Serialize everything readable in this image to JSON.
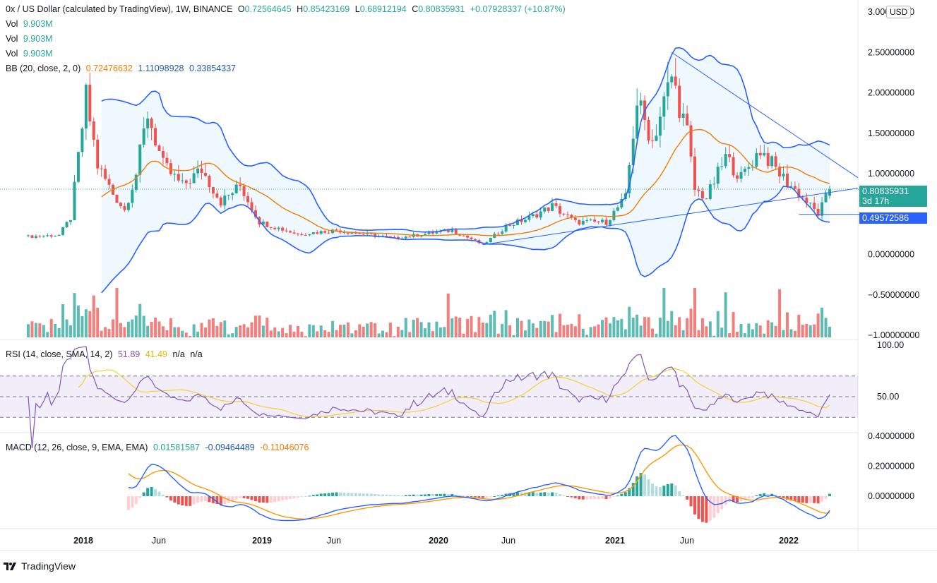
{
  "header": {
    "symbol": "0x / US Dollar (calculated by TradingView), 1W, BINANCE",
    "o_label": "O",
    "o": "0.72564645",
    "h_label": "H",
    "h": "0.85423169",
    "l_label": "L",
    "l": "0.68912194",
    "c_label": "C",
    "c": "0.80835931",
    "change": "+0.07928337 (+10.87%)"
  },
  "vol_rows": [
    {
      "label": "Vol",
      "value": "9.903M"
    },
    {
      "label": "Vol",
      "value": "9.903M"
    },
    {
      "label": "Vol",
      "value": "9.903M"
    }
  ],
  "bb": {
    "label": "BB (20, close, 2, 0)",
    "basis": "0.72476632",
    "upper": "1.11098928",
    "lower": "0.33854337"
  },
  "rsi": {
    "label": "RSI (14, close, SMA, 14, 2)",
    "value": "51.89",
    "sma": "41.49",
    "na1": "n/a",
    "na2": "n/a"
  },
  "macd": {
    "label": "MACD (12, 26, close, 9, EMA, EMA)",
    "hist": "0.01581587",
    "macd": "-0.09464489",
    "signal": "-0.11046076"
  },
  "currency_button": "USD",
  "price_tag": {
    "price": "0.80835931",
    "countdown": "3d 17h"
  },
  "line_tag": "0.49572586",
  "brand": "TradingView",
  "colors": {
    "up": "#26a69a",
    "down": "#ef5350",
    "bb": "#2962ff",
    "basis": "#f57c00",
    "rsi": "#7e57c2",
    "rsi_sma": "#f5d033"
  },
  "chart_data": {
    "type": "candlestick",
    "title": "0x / US Dollar, 1W, BINANCE",
    "price_axis": {
      "ticks": [
        "3.00000000",
        "2.50000000",
        "2.00000000",
        "1.50000000",
        "1.00000000",
        "0.00000000",
        "−0.50000000",
        "−1.00000000"
      ],
      "range": [
        -1.0,
        3.0
      ]
    },
    "time_axis": {
      "ticks": [
        "2018",
        "Jun",
        "2019",
        "Jun",
        "2020",
        "Jun",
        "2021",
        "Jun",
        "2022"
      ]
    },
    "rsi_axis": {
      "ticks": [
        "100.00",
        "50.00"
      ],
      "bands": [
        70,
        50,
        30
      ]
    },
    "macd_axis": {
      "ticks": [
        "0.40000000",
        "0.20000000",
        "0.00000000"
      ]
    },
    "close_anchor_points": [
      {
        "week": 0,
        "close": 0.22
      },
      {
        "week": 8,
        "close": 0.24
      },
      {
        "week": 11,
        "close": 0.45
      },
      {
        "week": 13,
        "close": 1.2
      },
      {
        "week": 15,
        "close": 1.95
      },
      {
        "week": 18,
        "close": 1.1
      },
      {
        "week": 22,
        "close": 0.75
      },
      {
        "week": 25,
        "close": 0.55
      },
      {
        "week": 28,
        "close": 1.0
      },
      {
        "week": 31,
        "close": 1.75
      },
      {
        "week": 35,
        "close": 1.1
      },
      {
        "week": 40,
        "close": 0.85
      },
      {
        "week": 45,
        "close": 1.05
      },
      {
        "week": 50,
        "close": 0.65
      },
      {
        "week": 55,
        "close": 0.85
      },
      {
        "week": 60,
        "close": 0.4
      },
      {
        "week": 70,
        "close": 0.25
      },
      {
        "week": 80,
        "close": 0.3
      },
      {
        "week": 95,
        "close": 0.2
      },
      {
        "week": 110,
        "close": 0.3
      },
      {
        "week": 118,
        "close": 0.12
      },
      {
        "week": 124,
        "close": 0.35
      },
      {
        "week": 130,
        "close": 0.45
      },
      {
        "week": 136,
        "close": 0.6
      },
      {
        "week": 142,
        "close": 0.4
      },
      {
        "week": 150,
        "close": 0.4
      },
      {
        "week": 155,
        "close": 0.7
      },
      {
        "week": 158,
        "close": 1.9
      },
      {
        "week": 162,
        "close": 1.4
      },
      {
        "week": 167,
        "close": 2.2
      },
      {
        "week": 171,
        "close": 1.5
      },
      {
        "week": 173,
        "close": 0.8
      },
      {
        "week": 176,
        "close": 0.7
      },
      {
        "week": 181,
        "close": 1.2
      },
      {
        "week": 185,
        "close": 0.95
      },
      {
        "week": 190,
        "close": 1.3
      },
      {
        "week": 195,
        "close": 1.0
      },
      {
        "week": 200,
        "close": 0.75
      },
      {
        "week": 205,
        "close": 0.5
      },
      {
        "week": 208,
        "close": 0.81
      }
    ],
    "last": {
      "open": 0.72564645,
      "high": 0.85423169,
      "low": 0.68912194,
      "close": 0.80835931
    },
    "bollinger": {
      "period": 20,
      "basis": 0.72476632,
      "upper": 1.11098928,
      "lower": 0.33854337
    },
    "horizontal_line": 0.49572586,
    "rsi_values": {
      "rsi": 51.89,
      "sma": 41.49
    },
    "macd_values": {
      "histogram": 0.01581587,
      "macd": -0.09464489,
      "signal": -0.11046076
    }
  }
}
